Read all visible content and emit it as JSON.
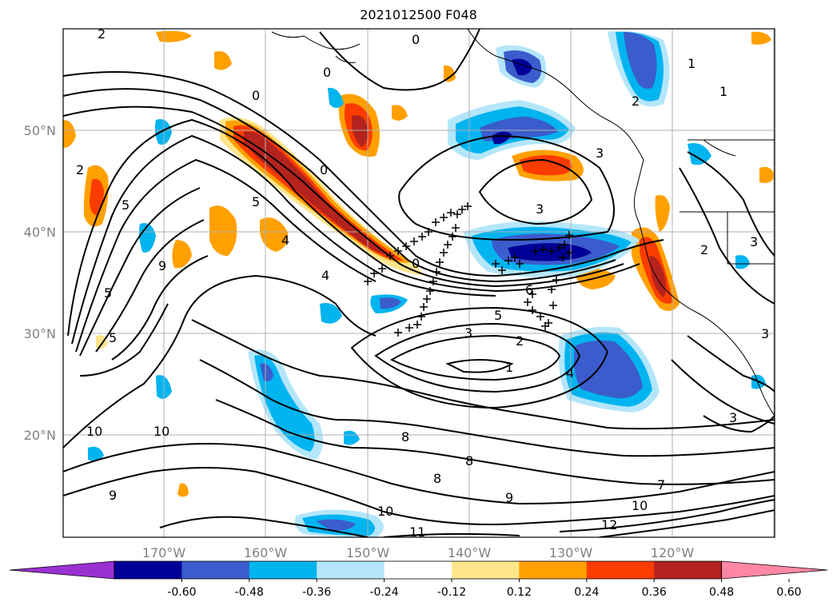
{
  "title": "2021012500 F048",
  "lat_labels": [
    "50°N",
    "40°N",
    "30°N",
    "20°N"
  ],
  "lon_labels": [
    "170°W",
    "160°W",
    "150°W",
    "140°W",
    "130°W",
    "120°W"
  ],
  "colorbar": {
    "ticks": [
      "-0.60",
      "-0.48",
      "-0.36",
      "-0.24",
      "-0.12",
      "0.12",
      "0.24",
      "0.36",
      "0.48",
      "0.60"
    ],
    "colors": [
      "#9b30d0",
      "#000096",
      "#3b5ccc",
      "#00b4f0",
      "#b4e6fa",
      "#ffffff",
      "#ffe68c",
      "#ffa000",
      "#fa3c00",
      "#b4231e",
      "#ff87a5"
    ]
  },
  "contour_labels": [
    "2",
    "0",
    "0",
    "0",
    "1",
    "2",
    "2",
    "5",
    "5",
    "4",
    "4",
    "9",
    "0",
    "0",
    "3",
    "3",
    "6",
    "5",
    "3",
    "2",
    "1",
    "4",
    "1",
    "2",
    "3",
    "3",
    "5",
    "5",
    "10",
    "10",
    "8",
    "8",
    "8",
    "9",
    "9",
    "10",
    "11",
    "12",
    "10",
    "7",
    "3"
  ]
}
